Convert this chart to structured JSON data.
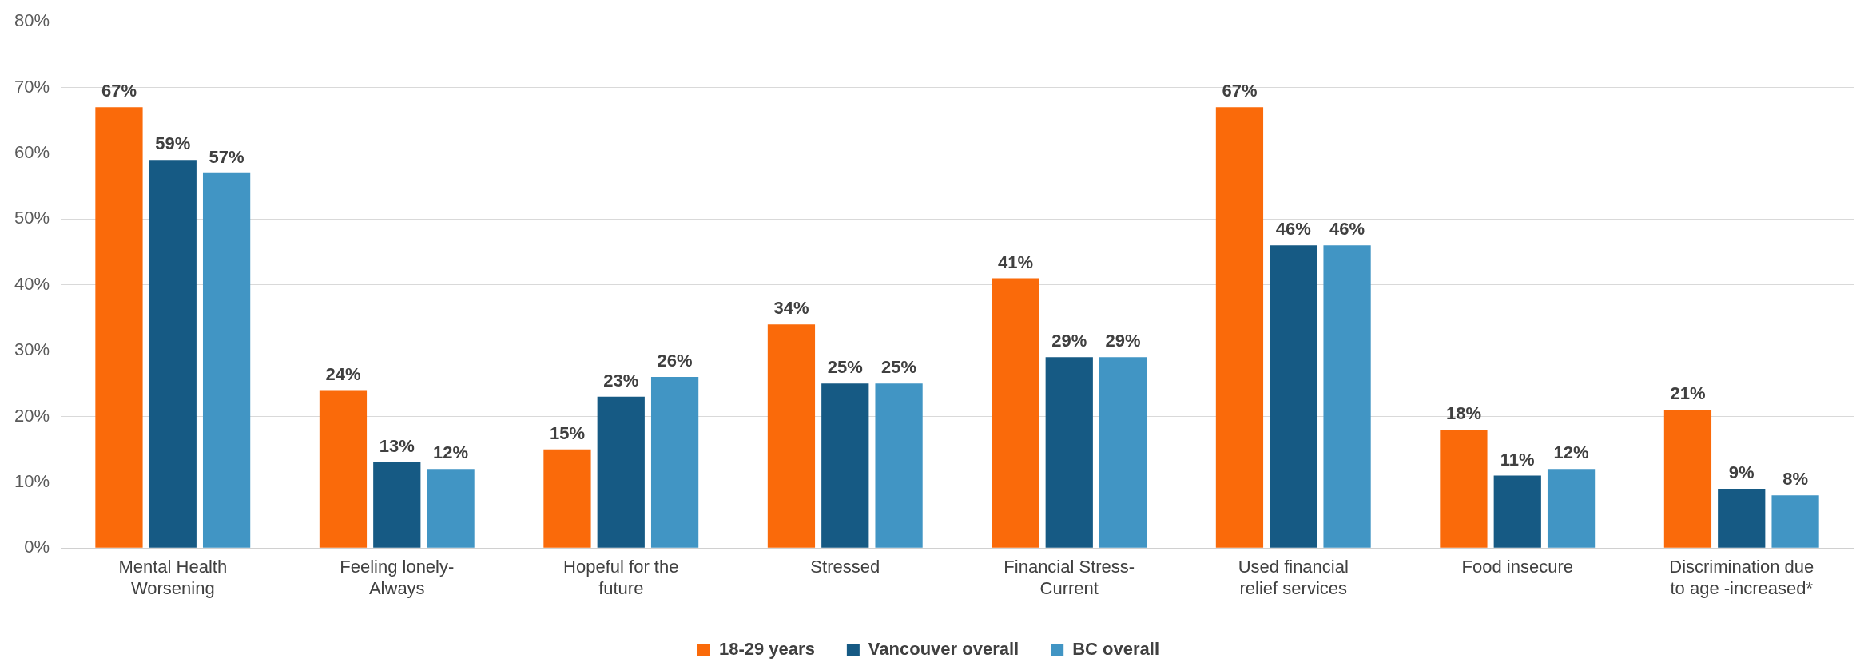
{
  "chart_data": {
    "type": "bar",
    "categories": [
      "Mental Health Worsening",
      "Feeling lonely-Always",
      "Hopeful for the future",
      "Stressed",
      "Financial Stress-Current",
      "Used financial relief services",
      "Food insecure",
      "Discrimination due to age -increased*"
    ],
    "series": [
      {
        "name": "18-29 years",
        "color": "#fa6a0a",
        "values": [
          67,
          24,
          15,
          34,
          41,
          67,
          18,
          21
        ],
        "value_labels": [
          "67%",
          "24%",
          "15%",
          "34%",
          "41%",
          "67%",
          "18%",
          "21%"
        ]
      },
      {
        "name": "Vancouver overall",
        "color": "#165a84",
        "values": [
          59,
          13,
          23,
          25,
          29,
          46,
          11,
          9
        ],
        "value_labels": [
          "59%",
          "13%",
          "23%",
          "25%",
          "29%",
          "46%",
          "11%",
          "9%"
        ]
      },
      {
        "name": "BC overall",
        "color": "#4195c4",
        "values": [
          57,
          12,
          26,
          25,
          29,
          46,
          12,
          8
        ],
        "value_labels": [
          "57%",
          "12%",
          "26%",
          "25%",
          "29%",
          "46%",
          "12%",
          "8%"
        ]
      }
    ],
    "ylim": [
      0,
      80
    ],
    "yticks": [
      {
        "value": 0,
        "label": "0%"
      },
      {
        "value": 10,
        "label": "10%"
      },
      {
        "value": 20,
        "label": "20%"
      },
      {
        "value": 30,
        "label": "30%"
      },
      {
        "value": 40,
        "label": "40%"
      },
      {
        "value": 50,
        "label": "50%"
      },
      {
        "value": 60,
        "label": "60%"
      },
      {
        "value": 70,
        "label": "70%"
      },
      {
        "value": 80,
        "label": "80%"
      }
    ],
    "grid": "y",
    "legend": "bottom"
  }
}
